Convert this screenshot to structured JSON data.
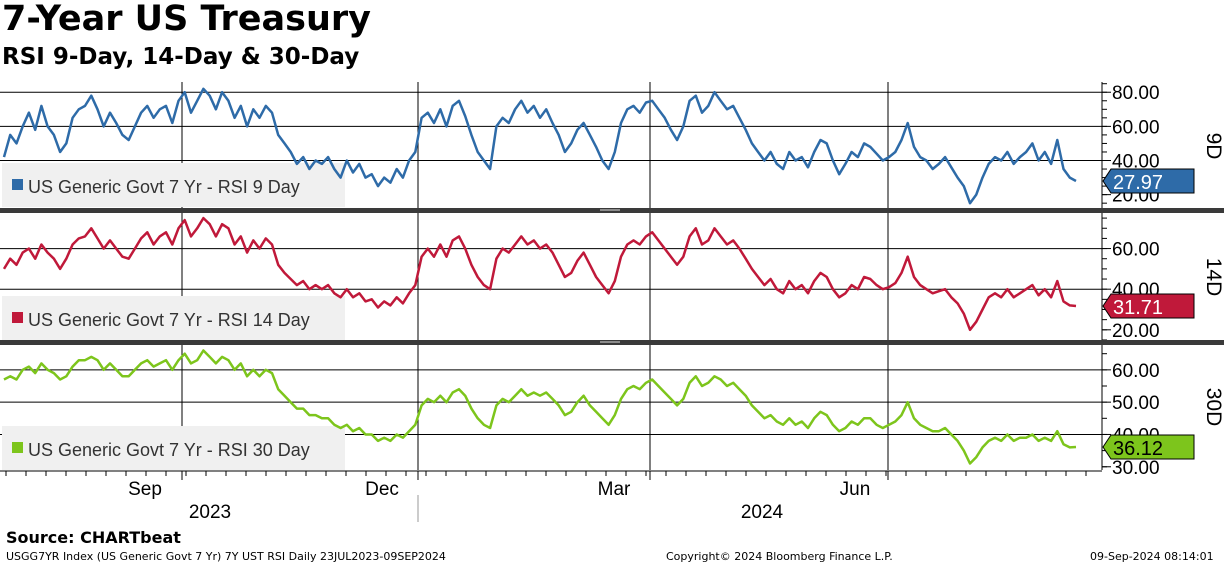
{
  "header": {
    "title": "7-Year US Treasury",
    "subtitle": "RSI 9-Day, 14-Day & 30-Day"
  },
  "footer": {
    "source": "Source: CHARTbeat",
    "index_info": "USGG7YR Index (US Generic Govt 7 Yr) 7Y UST RSI  Daily 23JUL2023-09SEP2024",
    "copyright": "Copyright© 2024 Bloomberg Finance L.P.",
    "timestamp": "09-Sep-2024 08:14:01"
  },
  "x_axis": {
    "months": [
      "Sep",
      "Dec",
      "Mar",
      "Jun"
    ],
    "years": [
      "2023",
      "2024"
    ]
  },
  "colors": {
    "rsi9": "#2e6ba8",
    "rsi14": "#c0193a",
    "rsi30": "#7dc51c",
    "grid": "#000000",
    "legend_bg": "#f0f0f0"
  },
  "chart_data": [
    {
      "type": "line",
      "panel_label": "9D",
      "legend": "US Generic Govt 7 Yr - RSI 9 Day",
      "last_value_label": "27.97",
      "yticks": [
        "80.00",
        "60.00",
        "40.00",
        "20.00"
      ],
      "ylim": [
        11,
        86
      ],
      "grid_values": [
        80,
        60,
        40
      ],
      "series": [
        {
          "name": "US Generic Govt 7 Yr - RSI 9 Day",
          "values": [
            42,
            55,
            50,
            60,
            68,
            58,
            72,
            60,
            55,
            45,
            50,
            65,
            70,
            72,
            78,
            70,
            60,
            68,
            62,
            55,
            52,
            60,
            68,
            72,
            65,
            70,
            72,
            62,
            75,
            80,
            68,
            75,
            82,
            78,
            70,
            80,
            75,
            65,
            72,
            60,
            70,
            65,
            72,
            68,
            55,
            50,
            45,
            38,
            42,
            35,
            40,
            38,
            42,
            35,
            30,
            40,
            33,
            38,
            30,
            32,
            25,
            30,
            27,
            35,
            30,
            40,
            45,
            65,
            68,
            62,
            70,
            60,
            72,
            75,
            66,
            55,
            45,
            40,
            35,
            60,
            65,
            62,
            70,
            75,
            68,
            72,
            65,
            70,
            62,
            55,
            45,
            50,
            58,
            62,
            55,
            48,
            40,
            35,
            45,
            62,
            70,
            72,
            68,
            74,
            75,
            70,
            65,
            58,
            52,
            60,
            75,
            78,
            68,
            72,
            80,
            75,
            70,
            72,
            65,
            58,
            50,
            45,
            40,
            45,
            38,
            35,
            45,
            40,
            42,
            36,
            45,
            52,
            50,
            40,
            32,
            38,
            45,
            42,
            50,
            48,
            44,
            40,
            42,
            45,
            52,
            62,
            48,
            42,
            40,
            35,
            38,
            42,
            36,
            30,
            25,
            15,
            20,
            30,
            38,
            42,
            40,
            45,
            38,
            42,
            45,
            50,
            40,
            45,
            38,
            52,
            35,
            30,
            27.97
          ]
        }
      ]
    },
    {
      "type": "line",
      "panel_label": "14D",
      "legend": "US Generic Govt 7 Yr - RSI 14 Day",
      "last_value_label": "31.71",
      "yticks": [
        "60.00",
        "40.00",
        "20.00"
      ],
      "ylim": [
        14,
        78
      ],
      "grid_values": [
        60,
        40
      ],
      "series": [
        {
          "name": "US Generic Govt 7 Yr - RSI 14 Day",
          "values": [
            50,
            55,
            52,
            58,
            60,
            55,
            62,
            58,
            55,
            50,
            55,
            62,
            65,
            66,
            70,
            65,
            60,
            64,
            60,
            56,
            55,
            60,
            65,
            68,
            62,
            66,
            68,
            62,
            70,
            74,
            66,
            70,
            75,
            72,
            66,
            72,
            70,
            62,
            66,
            58,
            64,
            60,
            65,
            62,
            52,
            48,
            45,
            42,
            44,
            40,
            42,
            40,
            42,
            38,
            36,
            40,
            36,
            38,
            34,
            35,
            31,
            34,
            32,
            36,
            33,
            38,
            42,
            56,
            60,
            56,
            62,
            56,
            64,
            66,
            60,
            52,
            46,
            42,
            40,
            55,
            60,
            58,
            62,
            66,
            62,
            64,
            60,
            62,
            58,
            52,
            46,
            48,
            54,
            58,
            52,
            46,
            42,
            38,
            44,
            56,
            62,
            64,
            62,
            66,
            68,
            64,
            60,
            56,
            52,
            56,
            66,
            70,
            62,
            64,
            70,
            66,
            62,
            64,
            60,
            55,
            50,
            46,
            42,
            45,
            40,
            38,
            44,
            40,
            42,
            38,
            44,
            48,
            46,
            40,
            36,
            38,
            42,
            40,
            46,
            45,
            42,
            40,
            41,
            43,
            48,
            56,
            46,
            42,
            40,
            38,
            39,
            40,
            36,
            33,
            28,
            20,
            24,
            30,
            36,
            38,
            36,
            40,
            36,
            38,
            40,
            42,
            37,
            40,
            36,
            44,
            34,
            32,
            31.71
          ]
        }
      ]
    },
    {
      "type": "line",
      "panel_label": "30D",
      "legend": "US Generic Govt 7 Yr - RSI 30 Day",
      "last_value_label": "36.12",
      "yticks": [
        "60.00",
        "50.00",
        "40.00",
        "30.00"
      ],
      "ylim": [
        29,
        68
      ],
      "grid_values": [
        60,
        50,
        40
      ],
      "series": [
        {
          "name": "US Generic Govt 7 Yr - RSI 30 Day",
          "values": [
            57,
            58,
            57,
            60,
            61,
            59,
            62,
            60,
            59,
            57,
            58,
            61,
            63,
            63,
            64,
            63,
            60,
            62,
            60,
            58,
            58,
            60,
            62,
            63,
            61,
            62,
            63,
            60,
            63,
            65,
            62,
            63,
            66,
            64,
            62,
            64,
            63,
            60,
            62,
            58,
            60,
            58,
            60,
            59,
            54,
            52,
            50,
            48,
            48,
            46,
            46,
            45,
            45,
            43,
            42,
            43,
            41,
            42,
            40,
            40,
            38,
            39,
            38,
            40,
            39,
            41,
            43,
            49,
            51,
            50,
            52,
            50,
            53,
            54,
            52,
            48,
            45,
            43,
            42,
            49,
            51,
            50,
            52,
            54,
            52,
            53,
            52,
            53,
            51,
            49,
            46,
            47,
            50,
            52,
            49,
            47,
            45,
            43,
            46,
            51,
            54,
            55,
            54,
            56,
            57,
            55,
            53,
            51,
            49,
            51,
            56,
            58,
            55,
            56,
            58,
            57,
            55,
            56,
            54,
            52,
            49,
            47,
            45,
            46,
            44,
            43,
            45,
            43,
            44,
            42,
            45,
            47,
            46,
            43,
            41,
            42,
            44,
            43,
            45,
            45,
            43,
            42,
            43,
            44,
            46,
            50,
            45,
            43,
            42,
            41,
            41,
            42,
            40,
            38,
            35,
            31,
            33,
            36,
            38,
            39,
            38,
            40,
            38,
            39,
            39,
            40,
            38,
            39,
            38,
            41,
            37,
            36,
            36.12
          ]
        }
      ]
    }
  ]
}
